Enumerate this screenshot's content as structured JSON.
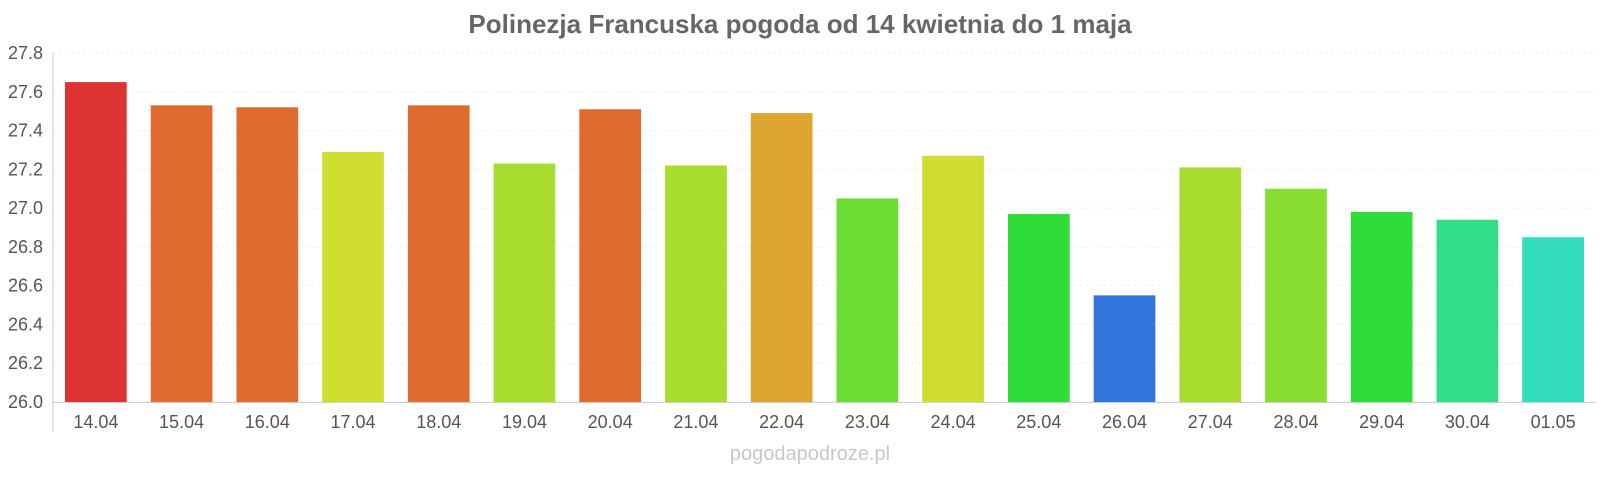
{
  "chart_data": {
    "type": "bar",
    "title": "Polinezja Francuska pogoda od 14 kwietnia do 1 maja",
    "xlabel": "",
    "ylabel": "",
    "categories": [
      "14.04",
      "15.04",
      "16.04",
      "17.04",
      "18.04",
      "19.04",
      "20.04",
      "21.04",
      "22.04",
      "23.04",
      "24.04",
      "25.04",
      "26.04",
      "27.04",
      "28.04",
      "29.04",
      "30.04",
      "01.05"
    ],
    "values": [
      27.65,
      27.53,
      27.52,
      27.29,
      27.53,
      27.23,
      27.51,
      27.22,
      27.49,
      27.05,
      27.27,
      26.97,
      26.55,
      27.21,
      27.1,
      26.98,
      26.94,
      26.85
    ],
    "colors": [
      "#dd3333",
      "#df6b30",
      "#df6b30",
      "#cedd30",
      "#df6b30",
      "#a8dd30",
      "#df6b30",
      "#a8dd30",
      "#dea630",
      "#6bdd33",
      "#cedd30",
      "#2fdd38",
      "#3375dd",
      "#a8dd30",
      "#88dd33",
      "#2fdd38",
      "#33dd88",
      "#33ddbb"
    ],
    "ylim": [
      26.0,
      27.8
    ],
    "yticks": [
      "26.0",
      "26.2",
      "26.4",
      "26.6",
      "26.8",
      "27.0",
      "27.2",
      "27.4",
      "27.6",
      "27.8"
    ],
    "grid": true,
    "legend": "none"
  },
  "watermark": "pogodapodroze.pl"
}
